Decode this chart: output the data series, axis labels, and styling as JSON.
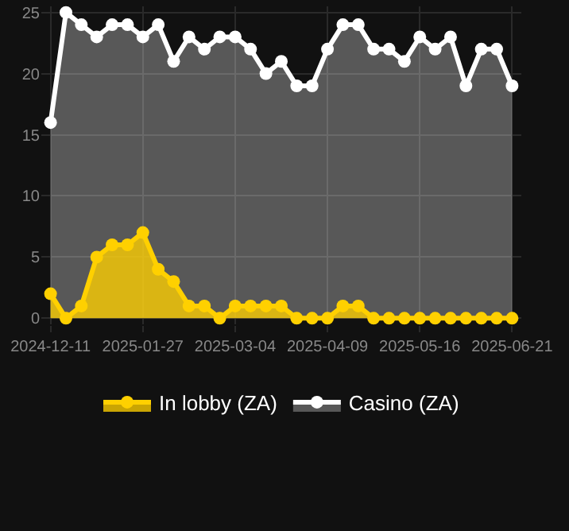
{
  "chart_data": {
    "type": "area",
    "categories": [
      "2024-12-11",
      null,
      null,
      null,
      null,
      null,
      "2025-01-27",
      null,
      null,
      null,
      null,
      null,
      "2025-03-04",
      null,
      null,
      null,
      null,
      null,
      "2025-04-09",
      null,
      null,
      null,
      null,
      null,
      "2025-05-16",
      null,
      null,
      null,
      null,
      null,
      "2025-06-21"
    ],
    "series": [
      {
        "name": "Casino (ZA)",
        "color": "#ffffff",
        "values": [
          16,
          25,
          24,
          23,
          24,
          24,
          23,
          24,
          21,
          23,
          22,
          23,
          23,
          22,
          20,
          21,
          19,
          19,
          22,
          24,
          24,
          22,
          22,
          21,
          23,
          22,
          23,
          19,
          22,
          22,
          19
        ]
      },
      {
        "name": "In lobby (ZA)",
        "color": "#ffd000",
        "values": [
          2,
          0,
          1,
          5,
          6,
          6,
          7,
          4,
          3,
          1,
          1,
          0,
          1,
          1,
          1,
          1,
          0,
          0,
          0,
          1,
          1,
          0,
          0,
          0,
          0,
          0,
          0,
          0,
          0,
          0,
          0
        ]
      }
    ],
    "ylim": [
      -0.5,
      25.5
    ],
    "yticks": [
      0,
      5,
      10,
      15,
      20,
      25
    ],
    "grid": true,
    "legend": "bottom",
    "marker": "circle"
  }
}
